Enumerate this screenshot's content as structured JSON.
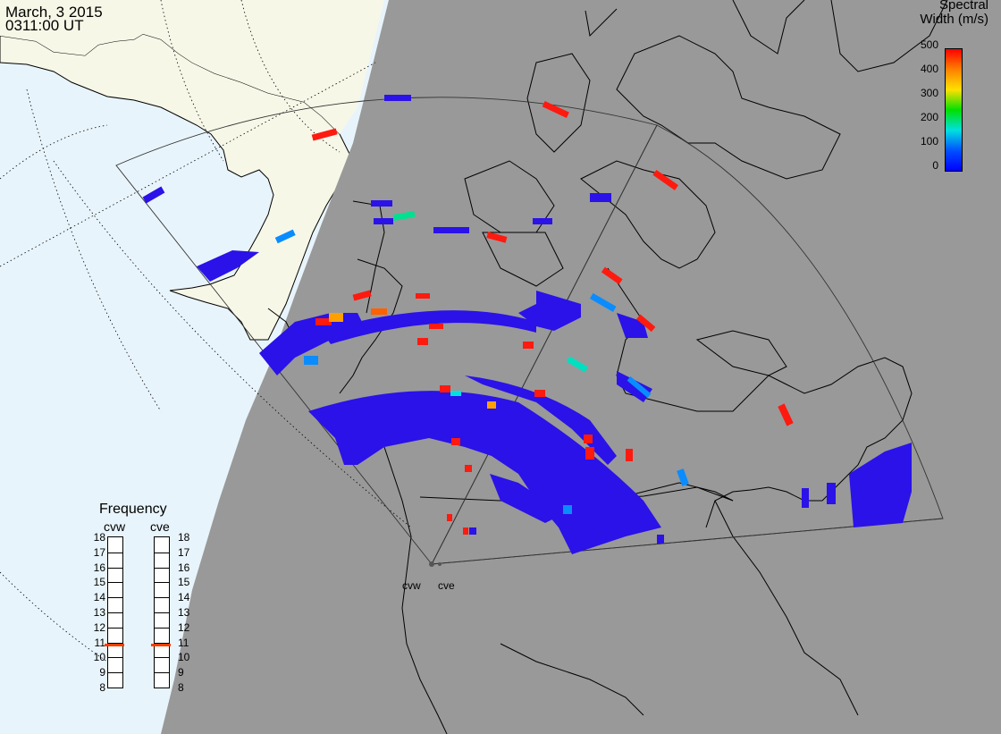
{
  "header": {
    "date": "March, 3 2015",
    "time": "0311:00 UT"
  },
  "colorbar": {
    "title_line1": "Spectral",
    "title_line2": "Width (m/s)",
    "ticks": [
      "500",
      "400",
      "300",
      "200",
      "100",
      "0"
    ],
    "colors": [
      "#ff0000",
      "#ff8000",
      "#ffe000",
      "#00e000",
      "#00e0e0",
      "#0050ff",
      "#0000ff"
    ]
  },
  "frequency_panel": {
    "title": "Frequency",
    "left_label": "cvw",
    "right_label": "cve",
    "ticks": [
      "18",
      "17",
      "16",
      "15",
      "14",
      "13",
      "12",
      "11",
      "10",
      "9",
      "8"
    ],
    "cvw_mhz": 10.8,
    "cve_mhz": 10.8
  },
  "radars": [
    {
      "name": "cvw"
    },
    {
      "name": "cve"
    }
  ],
  "map_colors": {
    "night": "#999999",
    "land_day": "#f7f7e8",
    "ocean_day": "#e8f4fb",
    "echo_blue": "#2a12e8",
    "echo_red": "#ff1a10"
  }
}
